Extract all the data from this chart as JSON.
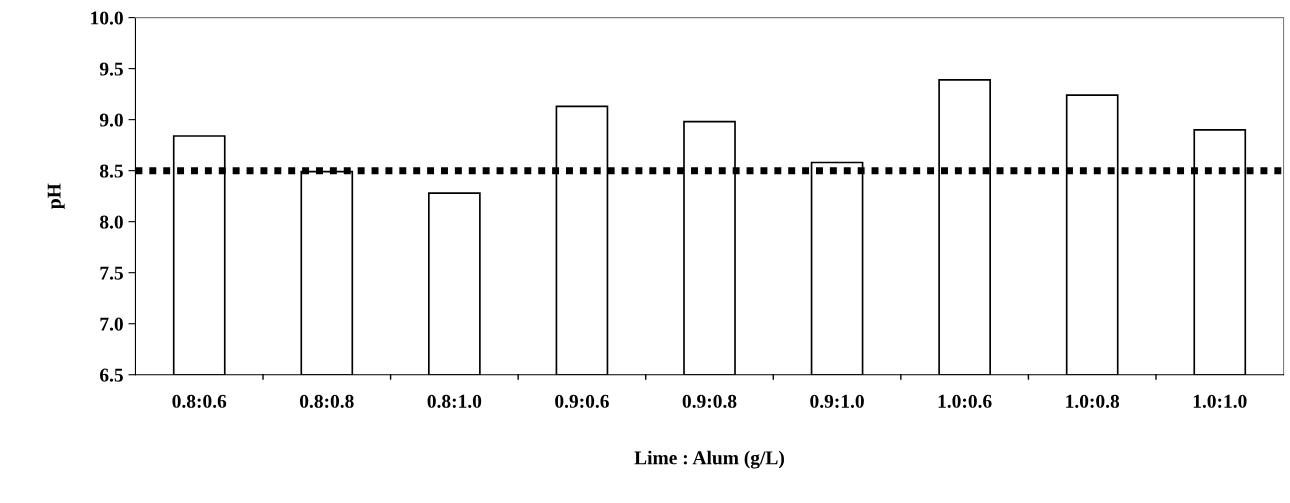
{
  "chart_data": {
    "type": "bar",
    "xlabel": "Lime : Alum (g/L)",
    "ylabel": "pH",
    "categories": [
      "0.8:0.6",
      "0.8:0.8",
      "0.8:1.0",
      "0.9:0.6",
      "0.9:0.8",
      "0.9:1.0",
      "1.0:0.6",
      "1.0:0.8",
      "1.0:1.0"
    ],
    "values": [
      8.84,
      8.49,
      8.28,
      9.13,
      8.98,
      8.58,
      9.39,
      9.24,
      8.9
    ],
    "color": "#ffffff",
    "ylim": [
      6.5,
      10.0
    ],
    "yticks": [
      {
        "value": 6.5,
        "label": "6.5"
      },
      {
        "value": 7.0,
        "label": "7.0"
      },
      {
        "value": 7.5,
        "label": "7.5"
      },
      {
        "value": 8.0,
        "label": "8.0"
      },
      {
        "value": 8.5,
        "label": "8.5"
      },
      {
        "value": 9.0,
        "label": "9.0"
      },
      {
        "value": 9.5,
        "label": "9.5"
      },
      {
        "value": 10.0,
        "label": "10.0"
      }
    ],
    "ref_lines": [
      {
        "axis": "y",
        "value": 8.5,
        "color": "#000000",
        "line_style": "dotted"
      }
    ],
    "grid": false,
    "legend": false
  }
}
